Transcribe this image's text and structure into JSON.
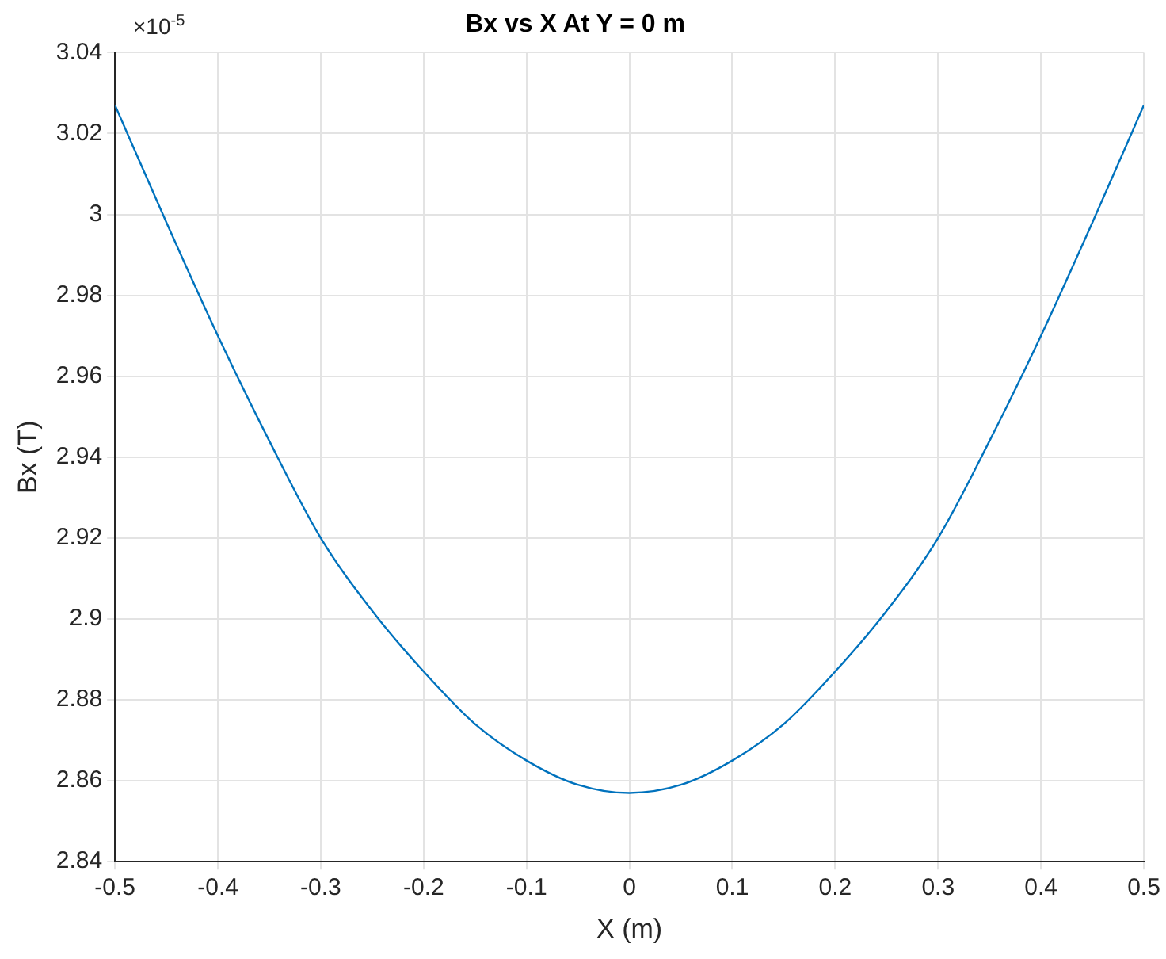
{
  "chart_data": {
    "type": "line",
    "title": "Bx vs X At Y = 0 m",
    "xlabel": "X (m)",
    "ylabel": "Bx (T)",
    "annotations": [
      "×10$^{-5}$"
    ],
    "x": [
      -0.5,
      -0.45,
      -0.4,
      -0.35,
      -0.3,
      -0.25,
      -0.2,
      -0.15,
      -0.1,
      -0.05,
      0,
      0.05,
      0.1,
      0.15,
      0.2,
      0.25,
      0.3,
      0.35,
      0.4,
      0.45,
      0.5
    ],
    "series": [
      {
        "color": "#0072bd",
        "values": [
          3.027,
          2.998,
          2.97,
          2.944,
          2.92,
          2.902,
          2.887,
          2.874,
          2.865,
          2.859,
          2.857,
          2.859,
          2.865,
          2.874,
          2.887,
          2.902,
          2.92,
          2.944,
          2.97,
          2.998,
          3.027
        ]
      }
    ],
    "xlim": [
      -0.5,
      0.5
    ],
    "xticks": [
      -0.5,
      -0.4,
      -0.3,
      -0.2,
      -0.1,
      0,
      0.1,
      0.2,
      0.3,
      0.4,
      0.5
    ],
    "ylim": [
      2.84,
      3.04
    ],
    "yticks": [
      2.84,
      2.86,
      2.88,
      2.9,
      2.92,
      2.94,
      2.96,
      2.98,
      3,
      3.02,
      3.04
    ],
    "grid": true,
    "legend": false,
    "marker": "none",
    "line_style": "solid"
  }
}
